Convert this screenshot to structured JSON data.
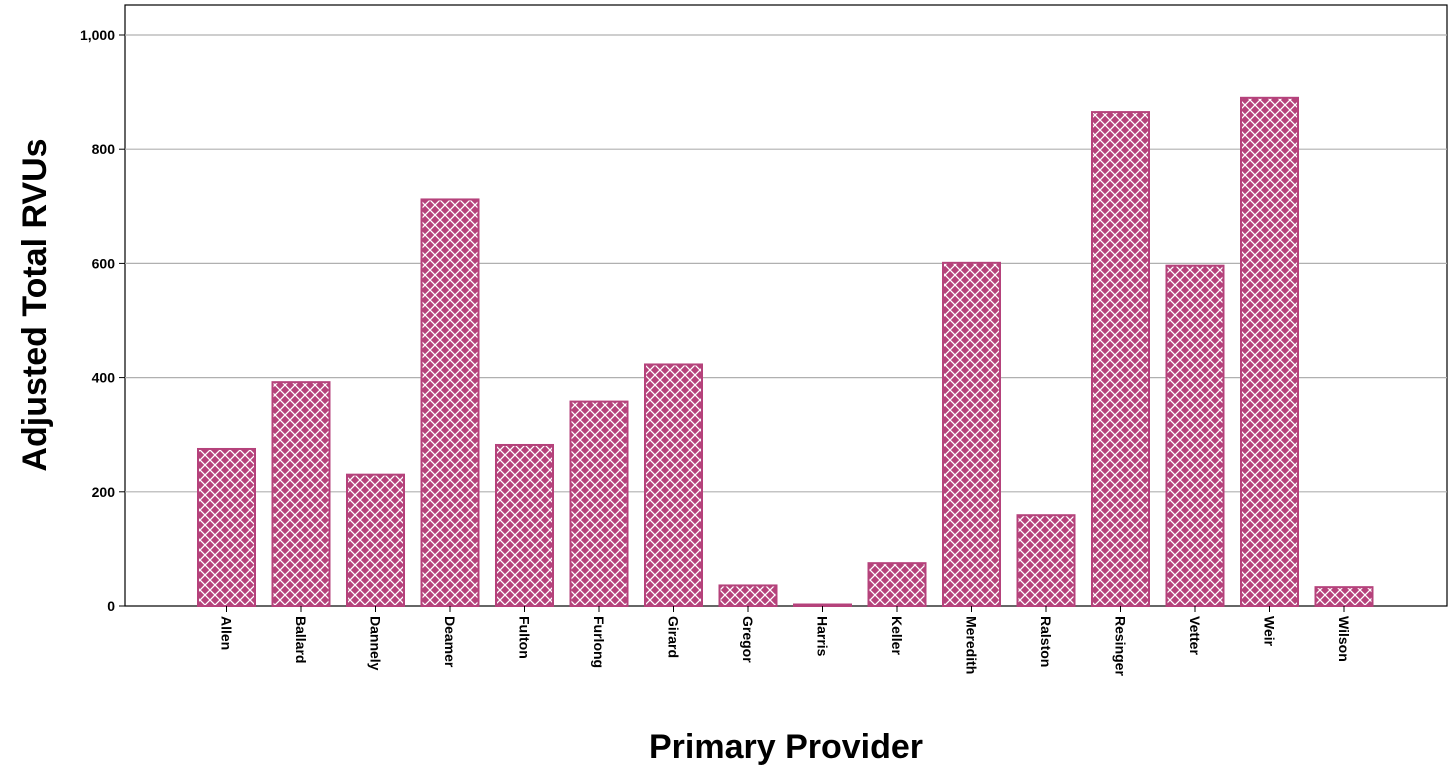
{
  "chart_data": {
    "type": "bar",
    "title": "",
    "xlabel": "Primary Provider",
    "ylabel": "Adjusted Total RVUs",
    "categories": [
      "Allen",
      "Ballard",
      "Dannely",
      "Deamer",
      "Fulton",
      "Furlong",
      "Girard",
      "Gregor",
      "Harris",
      "Keller",
      "Meredith",
      "Ralston",
      "Resinger",
      "Vetter",
      "Weir",
      "Wilson"
    ],
    "values": [
      275,
      392,
      230,
      712,
      282,
      358,
      423,
      36,
      2,
      75,
      601,
      159,
      865,
      596,
      890,
      33
    ],
    "ylim": [
      0,
      1050
    ],
    "yticks": [
      0,
      200,
      400,
      600,
      800,
      1000
    ],
    "ytick_labels": [
      "0",
      "200",
      "400",
      "600",
      "800",
      "1,000"
    ],
    "grid": true,
    "bar_color": "#b5427b",
    "bar_pattern": "crosshatch",
    "legend": "none"
  }
}
